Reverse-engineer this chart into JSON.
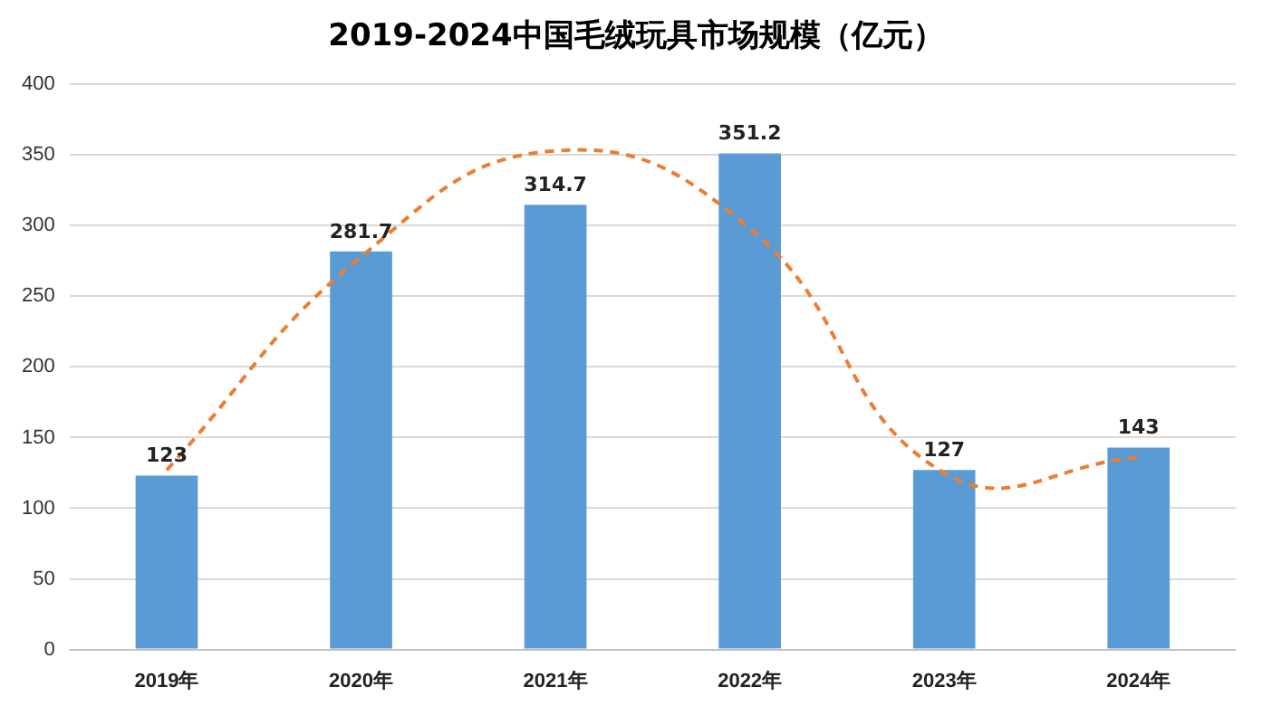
{
  "chart_data": {
    "type": "bar",
    "title": "2019-2024中国毛绒玩具市场规模（亿元）",
    "categories": [
      "2019年",
      "2020年",
      "2021年",
      "2022年",
      "2023年",
      "2024年"
    ],
    "series": [
      {
        "color": "#5b9bd5",
        "values": [
          123,
          281.7,
          314.7,
          351.2,
          127,
          143
        ],
        "value_labels": [
          "123",
          "281.7",
          "314.7",
          "351.2",
          "127",
          "143"
        ]
      },
      {
        "type": "line",
        "color": "#ed7d31",
        "line_style": "dashed",
        "marker": "none",
        "values": [
          127,
          278,
          353,
          298,
          125,
          136
        ]
      }
    ],
    "ylim": [
      0,
      400
    ],
    "yticks": [
      0,
      50,
      100,
      150,
      200,
      250,
      300,
      350,
      400
    ],
    "grid": "y",
    "legend": false
  }
}
